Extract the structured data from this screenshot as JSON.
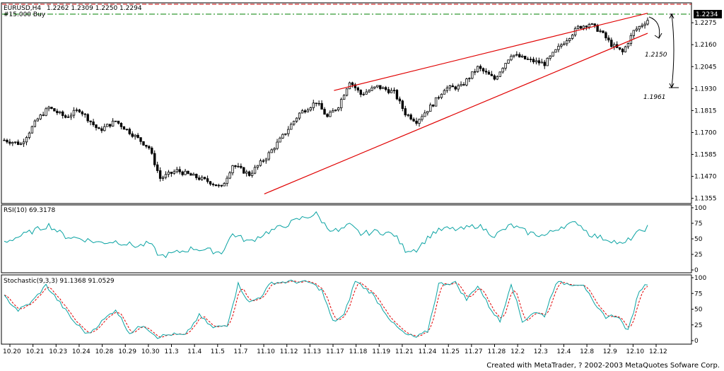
{
  "chart_data": [
    {
      "type": "candlestick",
      "name": "price-panel",
      "title": "EURUSD,H4",
      "ohlc_label": "1.2262 1.2309 1.2250 1.2294",
      "subtitle": "#15.000 Buy",
      "y_ticks": [
        "1.2275",
        "1.2160",
        "1.2045",
        "1.1930",
        "1.1815",
        "1.1700",
        "1.1585",
        "1.1470",
        "1.1355"
      ],
      "ylim": [
        1.135,
        1.232
      ],
      "current_price_label": "1.2234",
      "annotations": [
        "1.2150",
        "1.1961"
      ],
      "key_points": [
        {
          "i": 0,
          "c": 1.166
        },
        {
          "i": 6,
          "c": 1.164
        },
        {
          "i": 12,
          "c": 1.177
        },
        {
          "i": 16,
          "c": 1.183
        },
        {
          "i": 22,
          "c": 1.178
        },
        {
          "i": 27,
          "c": 1.182
        },
        {
          "i": 34,
          "c": 1.171
        },
        {
          "i": 40,
          "c": 1.176
        },
        {
          "i": 47,
          "c": 1.168
        },
        {
          "i": 52,
          "c": 1.162
        },
        {
          "i": 56,
          "c": 1.146
        },
        {
          "i": 62,
          "c": 1.15
        },
        {
          "i": 68,
          "c": 1.147
        },
        {
          "i": 74,
          "c": 1.144
        },
        {
          "i": 78,
          "c": 1.141
        },
        {
          "i": 82,
          "c": 1.153
        },
        {
          "i": 88,
          "c": 1.148
        },
        {
          "i": 94,
          "c": 1.157
        },
        {
          "i": 100,
          "c": 1.168
        },
        {
          "i": 106,
          "c": 1.18
        },
        {
          "i": 112,
          "c": 1.186
        },
        {
          "i": 116,
          "c": 1.178
        },
        {
          "i": 120,
          "c": 1.184
        },
        {
          "i": 124,
          "c": 1.197
        },
        {
          "i": 128,
          "c": 1.19
        },
        {
          "i": 134,
          "c": 1.194
        },
        {
          "i": 140,
          "c": 1.191
        },
        {
          "i": 144,
          "c": 1.18
        },
        {
          "i": 148,
          "c": 1.176
        },
        {
          "i": 154,
          "c": 1.185
        },
        {
          "i": 158,
          "c": 1.193
        },
        {
          "i": 164,
          "c": 1.194
        },
        {
          "i": 170,
          "c": 1.204
        },
        {
          "i": 176,
          "c": 1.198
        },
        {
          "i": 182,
          "c": 1.211
        },
        {
          "i": 188,
          "c": 1.208
        },
        {
          "i": 194,
          "c": 1.206
        },
        {
          "i": 200,
          "c": 1.216
        },
        {
          "i": 206,
          "c": 1.225
        },
        {
          "i": 210,
          "c": 1.227
        },
        {
          "i": 214,
          "c": 1.223
        },
        {
          "i": 218,
          "c": 1.216
        },
        {
          "i": 222,
          "c": 1.212
        },
        {
          "i": 226,
          "c": 1.223
        },
        {
          "i": 231,
          "c": 1.229
        }
      ],
      "channel_lines": [
        {
          "from": [
            97,
            1.1378
          ],
          "to": [
            240,
            1.222
          ]
        },
        {
          "from": [
            123,
            1.192
          ],
          "to": [
            240,
            1.2325
          ]
        }
      ],
      "colors": {
        "up": "#000000",
        "down": "#000000",
        "channel": "#e00000",
        "grid": "#c8c8c8",
        "line_red": "#cc0000",
        "line_green": "#008000"
      }
    },
    {
      "type": "line",
      "name": "rsi-panel",
      "title": "RSI(10) 69.3178",
      "y_ticks": [
        "100",
        "75",
        "50",
        "25",
        "0"
      ],
      "ylim": [
        0,
        100
      ],
      "key_points": [
        {
          "i": 0,
          "v": 45
        },
        {
          "i": 6,
          "v": 55
        },
        {
          "i": 10,
          "v": 62
        },
        {
          "i": 16,
          "v": 72
        },
        {
          "i": 22,
          "v": 54
        },
        {
          "i": 28,
          "v": 50
        },
        {
          "i": 34,
          "v": 44
        },
        {
          "i": 40,
          "v": 46
        },
        {
          "i": 48,
          "v": 38
        },
        {
          "i": 52,
          "v": 43
        },
        {
          "i": 56,
          "v": 22
        },
        {
          "i": 62,
          "v": 28
        },
        {
          "i": 68,
          "v": 35
        },
        {
          "i": 74,
          "v": 31
        },
        {
          "i": 78,
          "v": 28
        },
        {
          "i": 82,
          "v": 58
        },
        {
          "i": 88,
          "v": 45
        },
        {
          "i": 94,
          "v": 60
        },
        {
          "i": 100,
          "v": 70
        },
        {
          "i": 106,
          "v": 82
        },
        {
          "i": 112,
          "v": 90
        },
        {
          "i": 116,
          "v": 68
        },
        {
          "i": 120,
          "v": 62
        },
        {
          "i": 124,
          "v": 72
        },
        {
          "i": 128,
          "v": 58
        },
        {
          "i": 134,
          "v": 62
        },
        {
          "i": 140,
          "v": 57
        },
        {
          "i": 144,
          "v": 32
        },
        {
          "i": 148,
          "v": 33
        },
        {
          "i": 154,
          "v": 60
        },
        {
          "i": 158,
          "v": 66
        },
        {
          "i": 164,
          "v": 65
        },
        {
          "i": 170,
          "v": 72
        },
        {
          "i": 176,
          "v": 55
        },
        {
          "i": 182,
          "v": 72
        },
        {
          "i": 188,
          "v": 60
        },
        {
          "i": 194,
          "v": 55
        },
        {
          "i": 200,
          "v": 70
        },
        {
          "i": 206,
          "v": 76
        },
        {
          "i": 210,
          "v": 58
        },
        {
          "i": 214,
          "v": 52
        },
        {
          "i": 218,
          "v": 48
        },
        {
          "i": 222,
          "v": 40
        },
        {
          "i": 226,
          "v": 55
        },
        {
          "i": 231,
          "v": 69
        }
      ],
      "colors": {
        "line": "#0aa3a3"
      }
    },
    {
      "type": "line",
      "name": "stochastic-panel",
      "title": "Stochastic(9,3,3) 91.1368 91.0529",
      "y_ticks": [
        "100",
        "75",
        "50",
        "25",
        "0"
      ],
      "ylim": [
        0,
        100
      ],
      "key_points": [
        {
          "i": 0,
          "v": 70
        },
        {
          "i": 5,
          "v": 48
        },
        {
          "i": 10,
          "v": 62
        },
        {
          "i": 15,
          "v": 88
        },
        {
          "i": 20,
          "v": 60
        },
        {
          "i": 25,
          "v": 30
        },
        {
          "i": 30,
          "v": 10
        },
        {
          "i": 35,
          "v": 30
        },
        {
          "i": 40,
          "v": 50
        },
        {
          "i": 45,
          "v": 12
        },
        {
          "i": 50,
          "v": 25
        },
        {
          "i": 55,
          "v": 6
        },
        {
          "i": 60,
          "v": 10
        },
        {
          "i": 65,
          "v": 8
        },
        {
          "i": 70,
          "v": 40
        },
        {
          "i": 75,
          "v": 20
        },
        {
          "i": 80,
          "v": 25
        },
        {
          "i": 84,
          "v": 90
        },
        {
          "i": 88,
          "v": 60
        },
        {
          "i": 92,
          "v": 70
        },
        {
          "i": 96,
          "v": 92
        },
        {
          "i": 104,
          "v": 94
        },
        {
          "i": 110,
          "v": 92
        },
        {
          "i": 114,
          "v": 80
        },
        {
          "i": 118,
          "v": 30
        },
        {
          "i": 122,
          "v": 40
        },
        {
          "i": 126,
          "v": 95
        },
        {
          "i": 132,
          "v": 75
        },
        {
          "i": 136,
          "v": 50
        },
        {
          "i": 140,
          "v": 25
        },
        {
          "i": 144,
          "v": 10
        },
        {
          "i": 148,
          "v": 5
        },
        {
          "i": 152,
          "v": 15
        },
        {
          "i": 156,
          "v": 90
        },
        {
          "i": 162,
          "v": 92
        },
        {
          "i": 166,
          "v": 65
        },
        {
          "i": 170,
          "v": 88
        },
        {
          "i": 174,
          "v": 55
        },
        {
          "i": 178,
          "v": 30
        },
        {
          "i": 182,
          "v": 92
        },
        {
          "i": 186,
          "v": 30
        },
        {
          "i": 190,
          "v": 45
        },
        {
          "i": 194,
          "v": 40
        },
        {
          "i": 198,
          "v": 92
        },
        {
          "i": 204,
          "v": 90
        },
        {
          "i": 208,
          "v": 90
        },
        {
          "i": 212,
          "v": 55
        },
        {
          "i": 216,
          "v": 38
        },
        {
          "i": 220,
          "v": 40
        },
        {
          "i": 224,
          "v": 15
        },
        {
          "i": 228,
          "v": 80
        },
        {
          "i": 231,
          "v": 91
        }
      ],
      "colors": {
        "main": "#0aa3a3",
        "signal": "#e00000"
      }
    }
  ],
  "x_axis": {
    "labels": [
      "10.20",
      "10.21",
      "10.23",
      "10.24",
      "10.28",
      "10.29",
      "10.30",
      "11.3",
      "11.4",
      "11.5",
      "11.7",
      "11.10",
      "11.12",
      "11.13",
      "11.17",
      "11.18",
      "11.19",
      "11.21",
      "11.24",
      "11.25",
      "11.27",
      "11.28",
      "12.2",
      "12.3",
      "12.4",
      "12.8",
      "12.9",
      "12.10",
      "12.12"
    ],
    "bar_count": 232
  },
  "footer": "Created with MetaTrader, ? 2002-2003 MetaQuotes Sofware Corp."
}
